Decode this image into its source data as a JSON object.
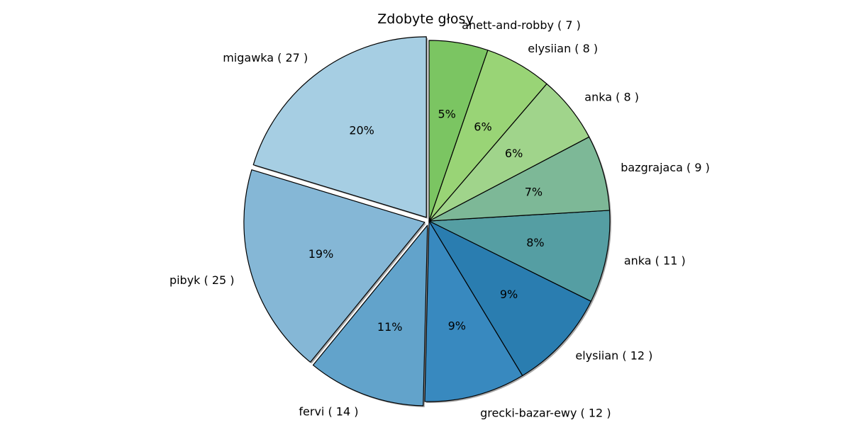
{
  "chart_data": {
    "type": "pie",
    "title": "Zdobyte głosy",
    "slices": [
      {
        "label": "migawka ( 27 )",
        "value": 27,
        "pct": "20%",
        "color": "#a6cee3",
        "exploded": true
      },
      {
        "label": "pibyk ( 25 )",
        "value": 25,
        "pct": "19%",
        "color": "#85b7d6",
        "exploded": true
      },
      {
        "label": "fervi ( 14 )",
        "value": 14,
        "pct": "11%",
        "color": "#62a3cb",
        "exploded": true
      },
      {
        "label": "grecki-bazar-ewy ( 12 )",
        "value": 12,
        "pct": "9%",
        "color": "#3889bf",
        "exploded": false
      },
      {
        "label": "elysiian ( 12 )",
        "value": 12,
        "pct": "9%",
        "color": "#2a7db0",
        "exploded": false
      },
      {
        "label": "anka ( 11 )",
        "value": 11,
        "pct": "8%",
        "color": "#559ea3",
        "exploded": false
      },
      {
        "label": "bazgrajaca ( 9 )",
        "value": 9,
        "pct": "7%",
        "color": "#7db897",
        "exploded": false
      },
      {
        "label": "anka ( 8 )",
        "value": 8,
        "pct": "6%",
        "color": "#a0d48b",
        "exploded": false
      },
      {
        "label": "elysiian ( 8 )",
        "value": 8,
        "pct": "6%",
        "color": "#99d476",
        "exploded": false
      },
      {
        "label": "anett-and-robby ( 7 )",
        "value": 7,
        "pct": "5%",
        "color": "#7bc562",
        "exploded": false
      }
    ],
    "start_angle": "top",
    "direction": "counterclockwise",
    "shadow": true,
    "edge_color": "#000000"
  }
}
